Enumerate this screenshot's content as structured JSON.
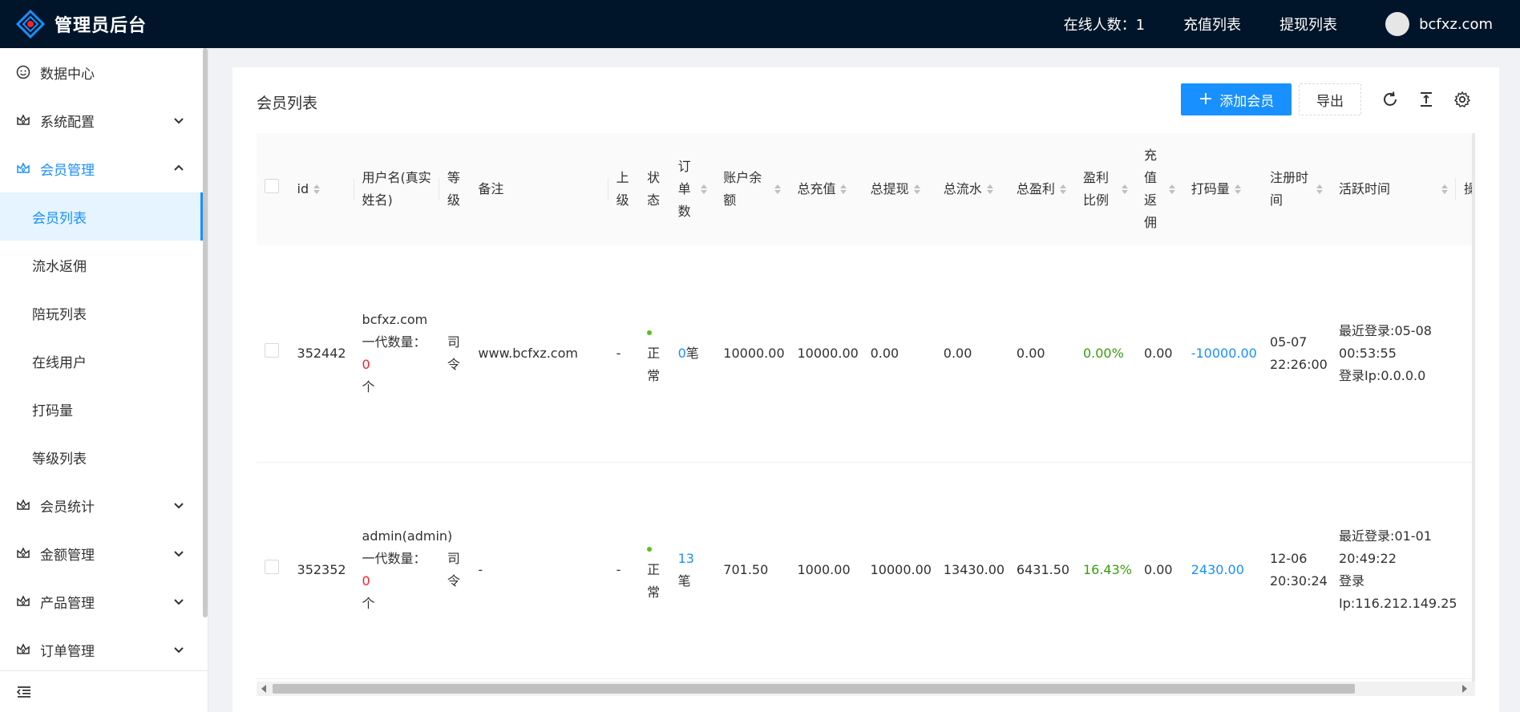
{
  "header": {
    "title": "管理员后台",
    "online_label": "在线人数：1",
    "recharge_list": "充值列表",
    "withdraw_list": "提现列表",
    "username": "bcfxz.com"
  },
  "sidebar": {
    "items": [
      {
        "label": "数据中心",
        "icon": "smile-icon"
      },
      {
        "label": "系统配置",
        "icon": "crown-icon"
      },
      {
        "label": "会员管理",
        "icon": "crown-icon"
      },
      {
        "label": "会员统计",
        "icon": "crown-icon"
      },
      {
        "label": "金额管理",
        "icon": "crown-icon"
      },
      {
        "label": "产品管理",
        "icon": "crown-icon"
      },
      {
        "label": "订单管理",
        "icon": "crown-icon"
      }
    ],
    "sub_items": [
      "会员列表",
      "流水返佣",
      "陪玩列表",
      "在线用户",
      "打码量",
      "等级列表"
    ]
  },
  "main": {
    "title": "会员列表",
    "add_button": "添加会员",
    "export_button": "导出"
  },
  "table": {
    "headers": {
      "id": "id",
      "username": "用户名(真实姓名)",
      "level": "等级",
      "remark": "备注",
      "parent": "上级",
      "status": "状态",
      "orders": "订单数",
      "balance": "账户余额",
      "total_recharge": "总充值",
      "total_withdraw": "总提现",
      "total_flow": "总流水",
      "total_profit": "总盈利",
      "profit_ratio": "盈利比例",
      "recharge_rebate": "充值返佣",
      "bet_amount": "打码量",
      "register_time": "注册时间",
      "active_time": "活跃时间",
      "extra": "操"
    },
    "rows": [
      {
        "id": "352442",
        "username": "bcfxz.com",
        "gen_label": "一代数量：",
        "gen_count": "0",
        "gen_unit": "个",
        "level": "司令",
        "remark": "www.bcfxz.com",
        "parent": "-",
        "status": "正常",
        "orders_count": "0",
        "orders_unit": "笔",
        "balance": "10000.00",
        "total_recharge": "10000.00",
        "total_withdraw": "0.00",
        "total_flow": "0.00",
        "total_profit": "0.00",
        "profit_ratio": "0.00%",
        "recharge_rebate": "0.00",
        "bet_amount": "-10000.00",
        "register_date": "05-07",
        "register_clock": "22:26:00",
        "last_login_label": "最近登录:05-08",
        "last_login_clock": "00:53:55",
        "login_ip": "登录Ip:0.0.0.0"
      },
      {
        "id": "352352",
        "username": "admin(admin)",
        "gen_label": "一代数量：",
        "gen_count": "0",
        "gen_unit": "个",
        "level": "司令",
        "remark": "-",
        "parent": "-",
        "status": "正常",
        "orders_count": "13",
        "orders_unit": "笔",
        "balance": "701.50",
        "total_recharge": "1000.00",
        "total_withdraw": "10000.00",
        "total_flow": "13430.00",
        "total_profit": "6431.50",
        "profit_ratio": "16.43%",
        "recharge_rebate": "0.00",
        "bet_amount": "2430.00",
        "register_date": "12-06",
        "register_clock": "20:30:24",
        "last_login_label": "最近登录:01-01",
        "last_login_clock": "20:49:22",
        "login_ip": "登录 Ip:116.212.149.25"
      }
    ]
  },
  "colors": {
    "header_bg": "#001529",
    "accent": "#1890ff",
    "positive": "#389e0d",
    "negative": "#f5222d"
  }
}
